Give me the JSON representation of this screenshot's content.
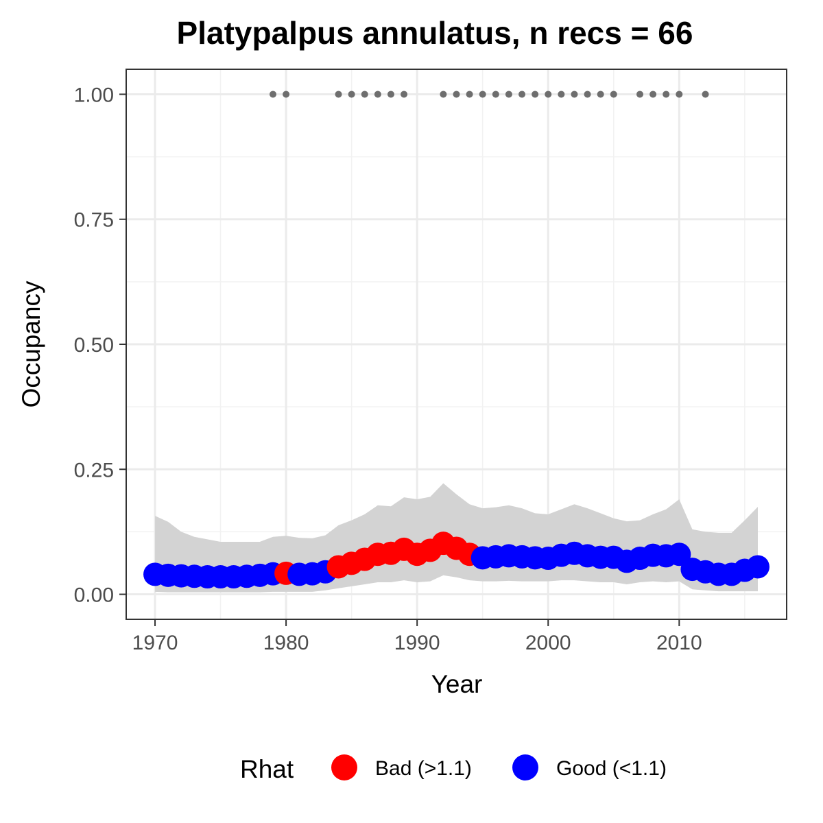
{
  "chart_data": {
    "type": "line",
    "title": "Platypalpus annulatus, n recs = 66",
    "xlabel": "Year",
    "ylabel": "Occupancy",
    "xlim": [
      1967.8,
      2018.2
    ],
    "ylim": [
      -0.05,
      1.05
    ],
    "x_ticks": [
      1970,
      1980,
      1990,
      2000,
      2010
    ],
    "x_tick_labels": [
      "1970",
      "1980",
      "1990",
      "2000",
      "2010"
    ],
    "y_ticks": [
      0.0,
      0.25,
      0.5,
      0.75,
      1.0
    ],
    "y_tick_labels": [
      "0.00",
      "0.25",
      "0.50",
      "0.75",
      "1.00"
    ],
    "grid": true,
    "legend": {
      "title": "Rhat",
      "position": "bottom",
      "entries": [
        {
          "key": "bad",
          "label": "Bad (>1.1)",
          "color": "#ff0000"
        },
        {
          "key": "good",
          "label": "Good (<1.1)",
          "color": "#0000ff"
        }
      ]
    },
    "ribbon_color": "#d3d3d3",
    "record_point_color": "#6e6e6e",
    "years": [
      1970,
      1971,
      1972,
      1973,
      1974,
      1975,
      1976,
      1977,
      1978,
      1979,
      1980,
      1981,
      1982,
      1983,
      1984,
      1985,
      1986,
      1987,
      1988,
      1989,
      1990,
      1991,
      1992,
      1993,
      1994,
      1995,
      1996,
      1997,
      1998,
      1999,
      2000,
      2001,
      2002,
      2003,
      2004,
      2005,
      2006,
      2007,
      2008,
      2009,
      2010,
      2011,
      2012,
      2013,
      2014,
      2015,
      2016
    ],
    "occupancy": [
      0.04,
      0.038,
      0.037,
      0.036,
      0.035,
      0.035,
      0.035,
      0.036,
      0.038,
      0.041,
      0.042,
      0.04,
      0.041,
      0.045,
      0.055,
      0.062,
      0.07,
      0.08,
      0.082,
      0.09,
      0.08,
      0.088,
      0.102,
      0.092,
      0.08,
      0.073,
      0.075,
      0.077,
      0.075,
      0.073,
      0.072,
      0.078,
      0.082,
      0.077,
      0.074,
      0.074,
      0.066,
      0.072,
      0.078,
      0.077,
      0.08,
      0.05,
      0.045,
      0.04,
      0.04,
      0.048,
      0.055
    ],
    "lower": [
      0.005,
      0.004,
      0.004,
      0.004,
      0.004,
      0.004,
      0.004,
      0.004,
      0.004,
      0.005,
      0.005,
      0.005,
      0.005,
      0.008,
      0.012,
      0.016,
      0.02,
      0.024,
      0.024,
      0.028,
      0.024,
      0.026,
      0.038,
      0.034,
      0.028,
      0.026,
      0.026,
      0.027,
      0.026,
      0.026,
      0.026,
      0.028,
      0.028,
      0.026,
      0.024,
      0.024,
      0.02,
      0.024,
      0.026,
      0.024,
      0.026,
      0.01,
      0.008,
      0.006,
      0.006,
      0.006,
      0.006
    ],
    "upper": [
      0.157,
      0.145,
      0.125,
      0.115,
      0.11,
      0.105,
      0.105,
      0.105,
      0.105,
      0.115,
      0.117,
      0.113,
      0.112,
      0.118,
      0.138,
      0.148,
      0.16,
      0.178,
      0.176,
      0.194,
      0.19,
      0.195,
      0.222,
      0.2,
      0.18,
      0.172,
      0.174,
      0.178,
      0.172,
      0.162,
      0.16,
      0.17,
      0.18,
      0.172,
      0.162,
      0.152,
      0.146,
      0.148,
      0.16,
      0.17,
      0.19,
      0.13,
      0.125,
      0.123,
      0.123,
      0.148,
      0.175
    ],
    "rhat": [
      "good",
      "good",
      "good",
      "good",
      "good",
      "good",
      "good",
      "good",
      "good",
      "good",
      "bad",
      "good",
      "good",
      "good",
      "bad",
      "bad",
      "bad",
      "bad",
      "bad",
      "bad",
      "bad",
      "bad",
      "bad",
      "bad",
      "bad",
      "good",
      "good",
      "good",
      "good",
      "good",
      "good",
      "good",
      "good",
      "good",
      "good",
      "good",
      "good",
      "good",
      "good",
      "good",
      "good",
      "good",
      "good",
      "good",
      "good",
      "good",
      "good"
    ],
    "record_years": [
      1979,
      1980,
      1984,
      1985,
      1986,
      1987,
      1988,
      1989,
      1992,
      1993,
      1994,
      1995,
      1996,
      1997,
      1998,
      1999,
      2000,
      2001,
      2002,
      2003,
      2004,
      2005,
      2007,
      2008,
      2009,
      2010,
      2012
    ],
    "record_value": 1.0
  }
}
